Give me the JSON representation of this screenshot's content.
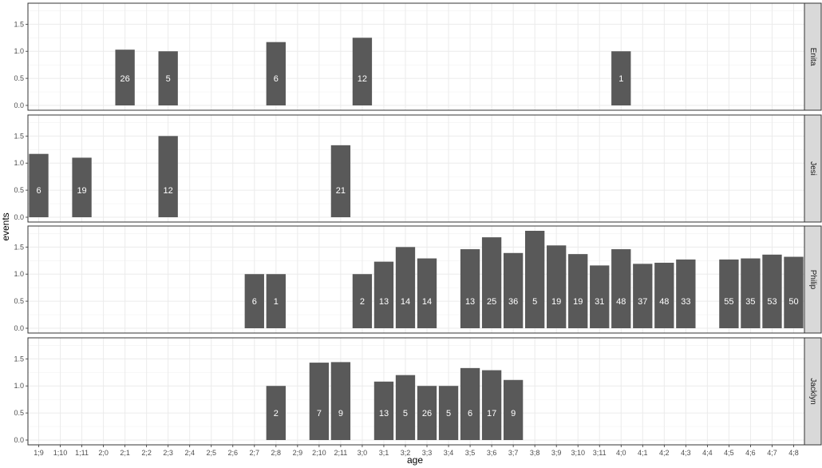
{
  "chart_data": {
    "type": "bar",
    "faceted": true,
    "xlabel": "age",
    "ylabel": "events",
    "ylim": [
      0,
      1.8
    ],
    "yticks": [
      "0.0",
      "0.5",
      "1.0",
      "1.5"
    ],
    "ytick_values": [
      0,
      0.5,
      1.0,
      1.5
    ],
    "grid": true,
    "bar_color": "#595959",
    "label_color": "#ffffff",
    "strip_color": "#d9d9d9",
    "categories": [
      "1;9",
      "1;10",
      "1;11",
      "2;0",
      "2;1",
      "2;2",
      "2;3",
      "2;4",
      "2;5",
      "2;6",
      "2;7",
      "2;8",
      "2;9",
      "2;10",
      "2;11",
      "3;0",
      "3;1",
      "3;2",
      "3;3",
      "3;4",
      "3;5",
      "3;6",
      "3;7",
      "3;8",
      "3;9",
      "3;10",
      "3;11",
      "4;0",
      "4;1",
      "4;2",
      "4;3",
      "4;4",
      "4;5",
      "4;6",
      "4;7",
      "4;8"
    ],
    "panels": [
      {
        "name": "Enita",
        "bars": [
          {
            "x": "2;1",
            "value": 1.03,
            "label": "26"
          },
          {
            "x": "2;3",
            "value": 1.0,
            "label": "5"
          },
          {
            "x": "2;8",
            "value": 1.17,
            "label": "6"
          },
          {
            "x": "3;0",
            "value": 1.25,
            "label": "12"
          },
          {
            "x": "4;0",
            "value": 1.0,
            "label": "1"
          }
        ]
      },
      {
        "name": "Jesi",
        "bars": [
          {
            "x": "1;9",
            "value": 1.17,
            "label": "6"
          },
          {
            "x": "1;11",
            "value": 1.1,
            "label": "19"
          },
          {
            "x": "2;3",
            "value": 1.5,
            "label": "12"
          },
          {
            "x": "2;11",
            "value": 1.33,
            "label": "21"
          }
        ]
      },
      {
        "name": "Philip",
        "bars": [
          {
            "x": "2;7",
            "value": 1.0,
            "label": "6"
          },
          {
            "x": "2;8",
            "value": 1.0,
            "label": "1"
          },
          {
            "x": "3;0",
            "value": 1.0,
            "label": "2"
          },
          {
            "x": "3;1",
            "value": 1.23,
            "label": "13"
          },
          {
            "x": "3;2",
            "value": 1.5,
            "label": "14"
          },
          {
            "x": "3;3",
            "value": 1.29,
            "label": "14"
          },
          {
            "x": "3;5",
            "value": 1.46,
            "label": "13"
          },
          {
            "x": "3;6",
            "value": 1.68,
            "label": "25"
          },
          {
            "x": "3;7",
            "value": 1.39,
            "label": "36"
          },
          {
            "x": "3;8",
            "value": 1.8,
            "label": "5"
          },
          {
            "x": "3;9",
            "value": 1.53,
            "label": "19"
          },
          {
            "x": "3;10",
            "value": 1.37,
            "label": "19"
          },
          {
            "x": "3;11",
            "value": 1.16,
            "label": "31"
          },
          {
            "x": "4;0",
            "value": 1.46,
            "label": "48"
          },
          {
            "x": "4;1",
            "value": 1.19,
            "label": "37"
          },
          {
            "x": "4;2",
            "value": 1.21,
            "label": "48"
          },
          {
            "x": "4;3",
            "value": 1.27,
            "label": "33"
          },
          {
            "x": "4;5",
            "value": 1.27,
            "label": "55"
          },
          {
            "x": "4;6",
            "value": 1.29,
            "label": "35"
          },
          {
            "x": "4;7",
            "value": 1.36,
            "label": "53"
          },
          {
            "x": "4;8",
            "value": 1.32,
            "label": "50"
          }
        ]
      },
      {
        "name": "Jacklyn",
        "bars": [
          {
            "x": "2;8",
            "value": 1.0,
            "label": "2"
          },
          {
            "x": "2;10",
            "value": 1.43,
            "label": "7"
          },
          {
            "x": "2;11",
            "value": 1.44,
            "label": "9"
          },
          {
            "x": "3;1",
            "value": 1.08,
            "label": "13"
          },
          {
            "x": "3;2",
            "value": 1.2,
            "label": "5"
          },
          {
            "x": "3;3",
            "value": 1.0,
            "label": "26"
          },
          {
            "x": "3;4",
            "value": 1.0,
            "label": "5"
          },
          {
            "x": "3;5",
            "value": 1.33,
            "label": "6"
          },
          {
            "x": "3;6",
            "value": 1.29,
            "label": "17"
          },
          {
            "x": "3;7",
            "value": 1.11,
            "label": "9"
          }
        ]
      }
    ]
  }
}
